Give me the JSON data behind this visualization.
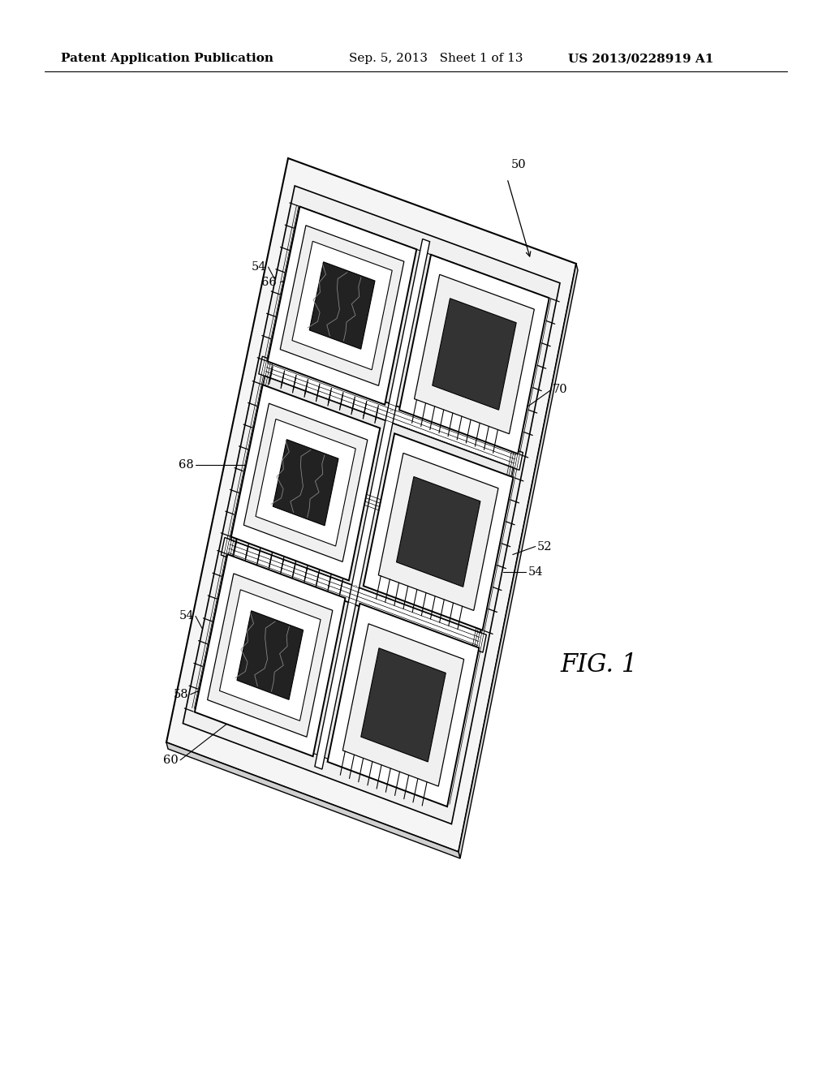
{
  "background_color": "#ffffff",
  "header_left": "Patent Application Publication",
  "header_center": "Sep. 5, 2013   Sheet 1 of 13",
  "header_right": "US 2013/0228919 A1",
  "fig_label": "FIG. 1",
  "header_fontsize": 11,
  "label_fontsize": 10.5,
  "fig_label_fontsize": 22
}
